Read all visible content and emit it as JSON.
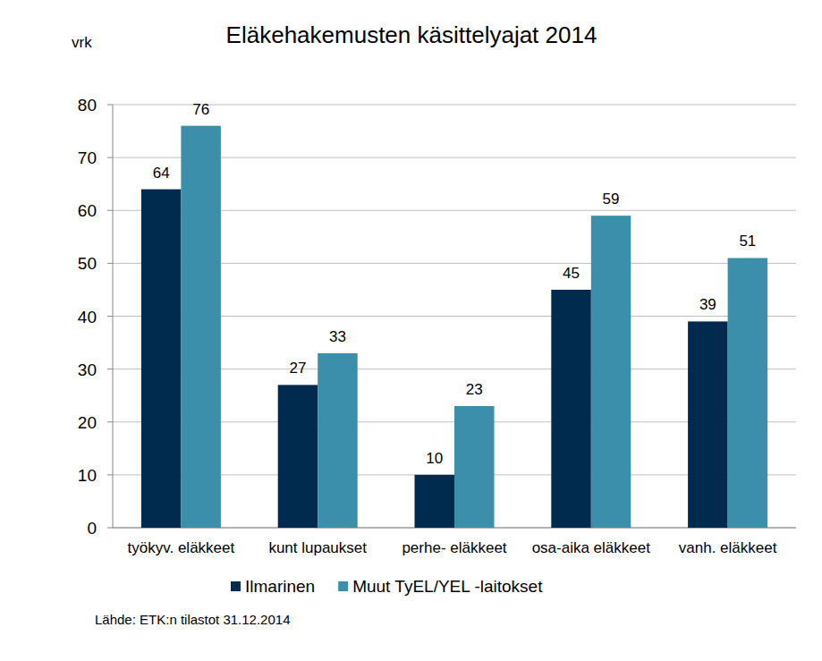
{
  "chart_data": {
    "type": "bar",
    "title": "Eläkehakemusten käsittelyajat 2014",
    "y_label": "vrk",
    "source": "Lähde: ETK:n tilastot 31.12.2014",
    "categories": [
      "työkyv. eläkkeet",
      "kunt lupaukset",
      "perhe- eläkkeet",
      "osa-aika eläkkeet",
      "vanh. eläkkeet"
    ],
    "series": [
      {
        "name": "Ilmarinen",
        "color": "#002a4e",
        "values": [
          64,
          27,
          10,
          45,
          39
        ]
      },
      {
        "name": "Muut TyEL/YEL -laitokset",
        "color": "#3b8fab",
        "values": [
          76,
          33,
          23,
          59,
          51
        ]
      }
    ],
    "ylim": [
      0,
      80
    ],
    "yticks": [
      0,
      10,
      20,
      30,
      40,
      50,
      60,
      70,
      80
    ],
    "grid": true,
    "data_labels": true,
    "legend": "bottom"
  }
}
